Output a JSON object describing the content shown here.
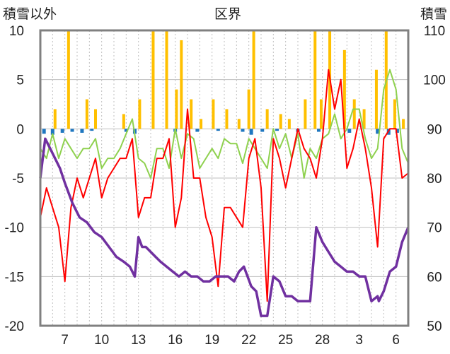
{
  "chart_data": {
    "type": "line",
    "title": "区界",
    "left_axis_label": "積雪以外",
    "right_axis_label": "積雪",
    "left_ylim": [
      -20,
      10
    ],
    "right_ylim": [
      50,
      110
    ],
    "left_ticks": [
      10,
      5,
      0,
      -5,
      -10,
      -15,
      -20
    ],
    "right_ticks": [
      110,
      100,
      90,
      80,
      70,
      60,
      50
    ],
    "x_ticks": [
      "7",
      "10",
      "13",
      "16",
      "19",
      "22",
      "25",
      "28",
      "3",
      "6"
    ],
    "x_tick_days": [
      2,
      5,
      8,
      11,
      14,
      17,
      20,
      23,
      26,
      29
    ],
    "xlim": [
      0,
      30
    ],
    "grid": true,
    "colors": {
      "max_temp": "#8fd14f",
      "min_temp": "#ff0000",
      "precipitation": "#ffc000",
      "wind": "#1f77c0",
      "snow_depth": "#7030a0",
      "frame": "#808080",
      "grid": "#bfbfbf"
    },
    "series": [
      {
        "key": "green",
        "axis": "left",
        "x": [
          0,
          0.5,
          1,
          1.5,
          2,
          2.5,
          3,
          3.5,
          4,
          4.5,
          5,
          5.5,
          6,
          6.5,
          7,
          7.5,
          8,
          8.5,
          9,
          9.5,
          10,
          10.5,
          11,
          11.5,
          12,
          12.5,
          13,
          13.5,
          14,
          14.5,
          15,
          15.5,
          16,
          16.5,
          17,
          17.5,
          18,
          18.5,
          19,
          19.5,
          20,
          20.5,
          21,
          21.5,
          22,
          22.5,
          23,
          23.5,
          24,
          24.5,
          25,
          25.5,
          26,
          26.5,
          27,
          27.5,
          28,
          28.5,
          29,
          29.5,
          30
        ],
        "y": [
          -2,
          -3,
          -0.5,
          -3,
          -1,
          -2,
          -3,
          -2,
          -2,
          -1,
          -4,
          -3,
          -3,
          -2,
          -0.5,
          1,
          -3,
          -3.5,
          -5,
          -2,
          -2,
          -4,
          0,
          -3,
          -0.5,
          -1,
          -4,
          -3,
          -2,
          -3,
          -1,
          -1.5,
          -1.5,
          -3.5,
          -1,
          -2,
          -3,
          -4,
          0,
          -2,
          -0.5,
          -3,
          -0.5,
          -5,
          -2,
          -3,
          -1,
          -0.5,
          1.5,
          -1,
          0,
          2,
          2,
          -1,
          -3,
          -2,
          4,
          6,
          4,
          -2,
          -3.5
        ]
      },
      {
        "key": "red",
        "axis": "left",
        "x": [
          0,
          0.5,
          1,
          1.5,
          2,
          2.5,
          3,
          3.5,
          4,
          4.5,
          5,
          5.5,
          6,
          6.5,
          7,
          7.5,
          8,
          8.5,
          9,
          9.5,
          10,
          10.5,
          11,
          11.5,
          12,
          12.5,
          13,
          13.5,
          14,
          14.5,
          15,
          15.5,
          16,
          16.5,
          17,
          17.5,
          18,
          18.5,
          19,
          19.5,
          20,
          20.5,
          21,
          21.5,
          22,
          22.5,
          23,
          23.5,
          24,
          24.5,
          25,
          25.5,
          26,
          26.5,
          27,
          27.5,
          28,
          28.5,
          29,
          29.5,
          30
        ],
        "y": [
          -9,
          -6,
          -8,
          -10,
          -15.5,
          -8,
          -5,
          -7,
          -5,
          -3,
          -7,
          -5,
          -4,
          -3,
          -3,
          -1,
          -9,
          -7,
          -7,
          -3,
          -3,
          -1,
          -10,
          -7,
          2,
          -5,
          -5,
          -9,
          -11,
          -16,
          -8,
          -8,
          -9,
          -10,
          -3,
          -1,
          -6,
          -17.5,
          -1,
          -3,
          -6,
          -3,
          0,
          -2,
          -3,
          -5,
          -1,
          6,
          2,
          5,
          -4,
          -2,
          1,
          -2,
          -6,
          -12,
          -1,
          0,
          0,
          -5,
          -4.5
        ]
      },
      {
        "key": "purple",
        "axis": "right",
        "x": [
          0,
          0.4,
          0.8,
          1.2,
          1.6,
          2,
          2.6,
          3.2,
          3.8,
          4.4,
          5,
          5.6,
          6.2,
          6.8,
          7.3,
          7.7,
          8,
          8.3,
          8.6,
          9,
          9.4,
          9.8,
          10.3,
          10.8,
          11.3,
          11.8,
          12.3,
          12.8,
          13.3,
          13.8,
          14.3,
          14.8,
          15.3,
          15.8,
          16.2,
          16.6,
          16.9,
          17.2,
          17.6,
          18,
          18.5,
          19,
          19.5,
          20,
          20.5,
          21,
          21.5,
          22,
          22.5,
          23,
          23.5,
          24,
          24.5,
          25,
          25.5,
          26,
          26.5,
          27,
          27.5,
          27.6,
          28,
          28.5,
          29,
          29.5,
          30
        ],
        "y": [
          80,
          88,
          86,
          84,
          82,
          79,
          75,
          72,
          71,
          69,
          68,
          66,
          64,
          63,
          62,
          60,
          68,
          66,
          66,
          65,
          64,
          63,
          62,
          61,
          60,
          61,
          60,
          60,
          59,
          59,
          60,
          60,
          60,
          59,
          61,
          62,
          60,
          58,
          57,
          52,
          52,
          60,
          59,
          56,
          56,
          55,
          55,
          55,
          70,
          67,
          65,
          63,
          62,
          61,
          61,
          60,
          60,
          55,
          56,
          55,
          57,
          61,
          62,
          67,
          70
        ]
      },
      {
        "key": "orange-bars",
        "axis": "left",
        "type": "bar",
        "x": [
          1.2,
          2.3,
          3.8,
          4.5,
          6.8,
          8.1,
          9.2,
          10.3,
          11.1,
          11.5,
          12.3,
          13.1,
          14.1,
          15.2,
          16.2,
          17.0,
          17.4,
          18.5,
          19.6,
          20.3,
          21.6,
          22.4,
          22.9,
          23.6,
          24.8,
          25.6,
          26.4,
          27.4,
          28.2,
          28.9,
          29.6
        ],
        "y": [
          2,
          10,
          3,
          2,
          1.5,
          3,
          10,
          10,
          4,
          9,
          3,
          1,
          3,
          2,
          1,
          4,
          10,
          2,
          1.5,
          1,
          3,
          10,
          3,
          10,
          8,
          3,
          2,
          6,
          10,
          3,
          1
        ]
      },
      {
        "key": "blue-bars",
        "axis": "left",
        "type": "bar",
        "x": [
          0.3,
          1.0,
          1.8,
          2.6,
          3.4,
          4.2,
          7.0,
          7.7,
          11.0,
          12.8,
          14.5,
          16.5,
          17.2,
          18.1,
          19.3,
          21.0,
          22.7,
          25.2,
          27.5,
          28.4,
          29.1
        ],
        "y": [
          -0.5,
          -0.6,
          -0.4,
          -0.3,
          -0.4,
          -0.2,
          -0.3,
          -0.5,
          -0.3,
          -0.3,
          -0.2,
          -0.3,
          -0.6,
          -0.3,
          -0.2,
          -0.3,
          -0.3,
          -0.4,
          -0.5,
          -0.6,
          -0.4
        ]
      }
    ]
  }
}
